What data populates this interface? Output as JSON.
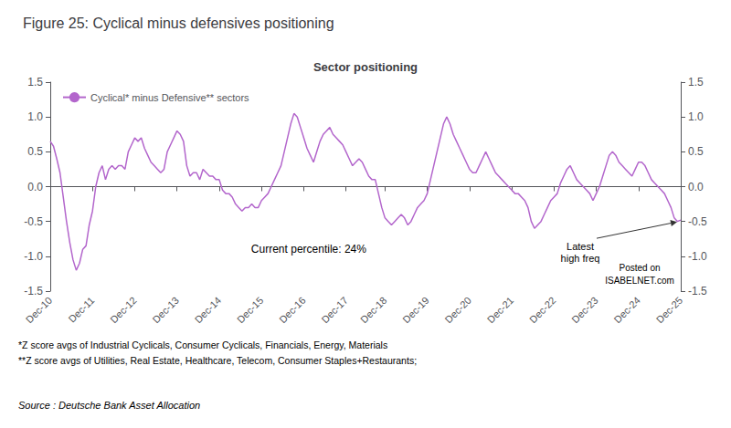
{
  "chart_data": {
    "type": "line",
    "title": "Figure 25: Cyclical minus defensives positioning",
    "subtitle": "Sector positioning",
    "categories": [
      "Dec-10",
      null,
      null,
      null,
      null,
      null,
      null,
      null,
      null,
      null,
      null,
      null,
      null,
      "Dec-11",
      null,
      null,
      null,
      null,
      null,
      null,
      null,
      null,
      null,
      null,
      null,
      null,
      "Dec-12",
      null,
      null,
      null,
      null,
      null,
      null,
      null,
      null,
      null,
      null,
      null,
      null,
      "Dec-13",
      null,
      null,
      null,
      null,
      null,
      null,
      null,
      null,
      null,
      null,
      null,
      null,
      "Dec-14",
      null,
      null,
      null,
      null,
      null,
      null,
      null,
      null,
      null,
      null,
      null,
      null,
      "Dec-15",
      null,
      null,
      null,
      null,
      null,
      null,
      null,
      null,
      null,
      null,
      null,
      null,
      "Dec-16",
      null,
      null,
      null,
      null,
      null,
      null,
      null,
      null,
      null,
      null,
      null,
      null,
      "Dec-17",
      null,
      null,
      null,
      null,
      null,
      null,
      null,
      null,
      null,
      null,
      null,
      "Dec-18",
      null,
      null,
      null,
      null,
      null,
      null,
      null,
      null,
      null,
      null,
      null,
      null,
      "Dec-19",
      null,
      null,
      null,
      null,
      null,
      null,
      null,
      null,
      null,
      null,
      null,
      null,
      "Dec-20",
      null,
      null,
      null,
      null,
      null,
      null,
      null,
      null,
      null,
      null,
      null,
      null,
      "Dec-21",
      null,
      null,
      null,
      null,
      null,
      null,
      null,
      null,
      null,
      null,
      null,
      null,
      "Dec-22",
      null,
      null,
      null,
      null,
      null,
      null,
      null,
      null,
      null,
      null,
      null,
      null,
      "Dec-23",
      null,
      null,
      null,
      null,
      null,
      null,
      null,
      null,
      null,
      null,
      null,
      null,
      "Dec-24",
      null,
      null,
      null,
      null,
      null,
      null,
      null,
      null,
      null,
      null,
      null,
      null,
      "Dec-25"
    ],
    "series": [
      {
        "name": "Cyclical* minus Defensive** sectors",
        "color": "#b366cc",
        "values": [
          0.65,
          0.58,
          0.4,
          0.2,
          -0.15,
          -0.5,
          -0.8,
          -1.05,
          -1.2,
          -1.1,
          -0.9,
          -0.85,
          -0.55,
          -0.35,
          0.0,
          0.2,
          0.3,
          0.1,
          0.25,
          0.3,
          0.25,
          0.3,
          0.3,
          0.25,
          0.5,
          0.6,
          0.7,
          0.65,
          0.7,
          0.55,
          0.45,
          0.35,
          0.3,
          0.25,
          0.2,
          0.25,
          0.5,
          0.6,
          0.7,
          0.8,
          0.75,
          0.65,
          0.3,
          0.15,
          0.2,
          0.2,
          0.1,
          0.25,
          0.2,
          0.15,
          0.15,
          0.1,
          0.1,
          -0.05,
          -0.1,
          -0.1,
          -0.15,
          -0.25,
          -0.3,
          -0.35,
          -0.3,
          -0.3,
          -0.25,
          -0.3,
          -0.3,
          -0.2,
          -0.15,
          -0.1,
          0.0,
          0.1,
          0.2,
          0.3,
          0.5,
          0.7,
          0.9,
          1.05,
          1.0,
          0.85,
          0.7,
          0.55,
          0.45,
          0.35,
          0.5,
          0.65,
          0.75,
          0.8,
          0.85,
          0.75,
          0.7,
          0.65,
          0.6,
          0.5,
          0.4,
          0.3,
          0.35,
          0.4,
          0.35,
          0.25,
          0.15,
          0.1,
          0.1,
          -0.1,
          -0.3,
          -0.45,
          -0.5,
          -0.55,
          -0.5,
          -0.45,
          -0.4,
          -0.45,
          -0.55,
          -0.5,
          -0.4,
          -0.3,
          -0.25,
          -0.2,
          -0.1,
          0.1,
          0.3,
          0.5,
          0.7,
          0.9,
          1.0,
          0.9,
          0.75,
          0.65,
          0.55,
          0.45,
          0.35,
          0.25,
          0.2,
          0.2,
          0.3,
          0.4,
          0.5,
          0.4,
          0.3,
          0.2,
          0.15,
          0.1,
          0.05,
          0.0,
          -0.05,
          -0.1,
          -0.1,
          -0.15,
          -0.2,
          -0.3,
          -0.5,
          -0.6,
          -0.55,
          -0.5,
          -0.4,
          -0.3,
          -0.2,
          -0.15,
          -0.1,
          0.05,
          0.15,
          0.25,
          0.3,
          0.2,
          0.1,
          0.05,
          0.0,
          -0.05,
          -0.1,
          -0.2,
          -0.1,
          0.0,
          0.15,
          0.3,
          0.45,
          0.5,
          0.45,
          0.35,
          0.3,
          0.25,
          0.2,
          0.15,
          0.25,
          0.35,
          0.35,
          0.3,
          0.2,
          0.1,
          0.05,
          0.0,
          -0.05,
          -0.1,
          -0.2,
          -0.3,
          -0.45,
          -0.5,
          -0.48
        ]
      }
    ],
    "ylim": [
      -1.5,
      1.5
    ],
    "yticks": [
      -1.5,
      {
        "value": -1,
        "label": "-1.0"
      },
      -0.5,
      {
        "value": 0,
        "label": "0.0"
      },
      0.5,
      {
        "value": 1,
        "label": "1.0"
      },
      1.5
    ],
    "y2lim": [
      -1.5,
      1.5
    ],
    "y2ticks": [
      -1.5,
      {
        "value": -1,
        "label": "-1.0"
      },
      -0.5,
      {
        "value": 0,
        "label": "0.0"
      },
      0.5,
      {
        "value": 1,
        "label": "1.0"
      },
      1.5
    ],
    "legend": "upper left",
    "grid": false,
    "annotations": [
      "Current percentile: 24%",
      "Latest\nhigh freq",
      "Posted on",
      "ISABELNET.com",
      "*Z score avgs of Industrial Cyclicals, Consumer Cyclicals, Financials, Energy, Materials",
      "**Z score avgs of Utilities, Real Estate, Healthcare, Telecom, Consumer Staples+Restaurants;",
      "Source : Deutsche Bank Asset Allocation"
    ]
  }
}
